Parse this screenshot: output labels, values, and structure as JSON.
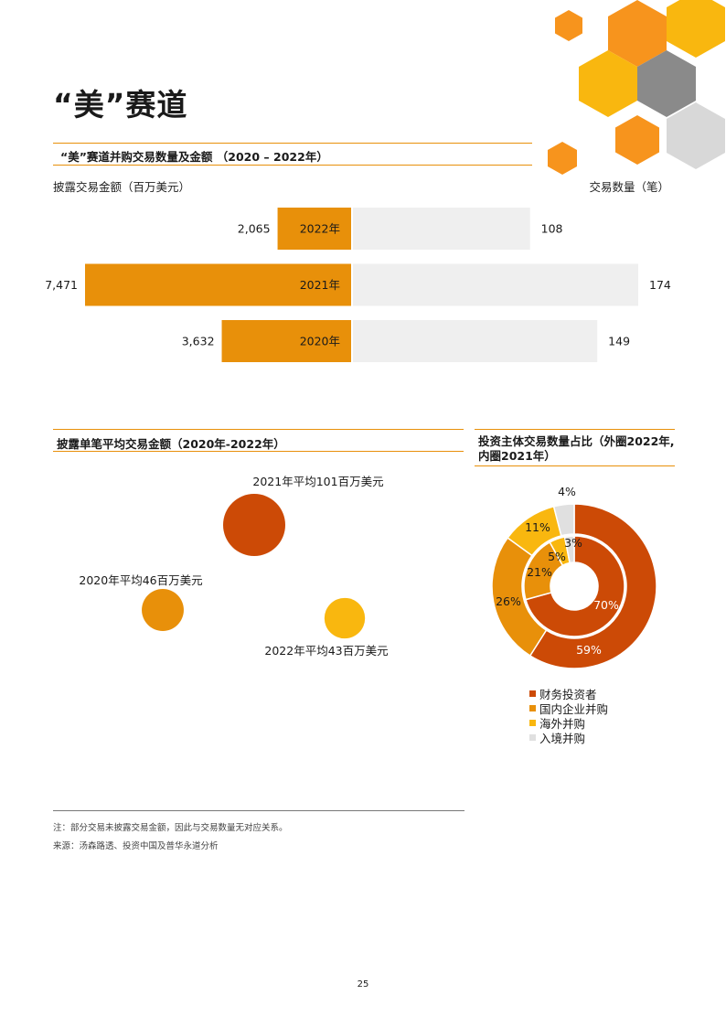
{
  "page": {
    "title": "“美”赛道",
    "page_number": "25",
    "footnote": "注：部分交易未披露交易金额，因此与交易数量无对应关系。",
    "source": "来源：汤森路透、投资中国及普华永道分析"
  },
  "colors": {
    "accent": "#e8900a",
    "value_bar": "#e8900a",
    "count_bar": "#efefef",
    "financial": "#cc4a06",
    "domestic": "#e8900a",
    "overseas": "#f9b70f",
    "inbound": "#e0e0e0",
    "hex_orange": "#f7941d",
    "hex_gold": "#f9b70f",
    "hex_dark_gray": "#8a8a8a",
    "hex_light_gray": "#d8d8d8"
  },
  "chart_data": [
    {
      "type": "bar",
      "title": "“美”赛道并购交易数量及金额 （2020 – 2022年）",
      "left_axis_label": "披露交易金额（百万美元）",
      "right_axis_label": "交易数量（笔）",
      "categories": [
        "2022年",
        "2021年",
        "2020年"
      ],
      "series": [
        {
          "name": "披露交易金额（百万美元）",
          "values": [
            2065,
            7471,
            3632
          ],
          "labels": [
            "2,065",
            "7,471",
            "3,632"
          ]
        },
        {
          "name": "交易数量（笔）",
          "values": [
            108,
            174,
            149
          ],
          "labels": [
            "108",
            "174",
            "149"
          ]
        }
      ]
    },
    {
      "type": "scatter",
      "title": "披露单笔平均交易金额（2020年-2022年）",
      "points": [
        {
          "label": "2021年平均101百万美元",
          "value": 101,
          "color": "#cc4a06"
        },
        {
          "label": "2020年平均46百万美元",
          "value": 46,
          "color": "#e8900a"
        },
        {
          "label": "2022年平均43百万美元",
          "value": 43,
          "color": "#f9b70f"
        }
      ]
    },
    {
      "type": "pie",
      "title_line1": "投资主体交易数量占比（外圈2022年,",
      "title_line2": "内圈2021年）",
      "categories": [
        "财务投资者",
        "国内企业并购",
        "海外并购",
        "入境并购"
      ],
      "series": [
        {
          "name": "外圈2022年",
          "values": [
            59,
            26,
            11,
            4
          ],
          "labels": [
            "59%",
            "26%",
            "11%",
            "4%"
          ]
        },
        {
          "name": "内圈2021年",
          "values": [
            70,
            21,
            5,
            3
          ],
          "labels": [
            "70%",
            "21%",
            "5%",
            "3%"
          ]
        }
      ]
    }
  ]
}
